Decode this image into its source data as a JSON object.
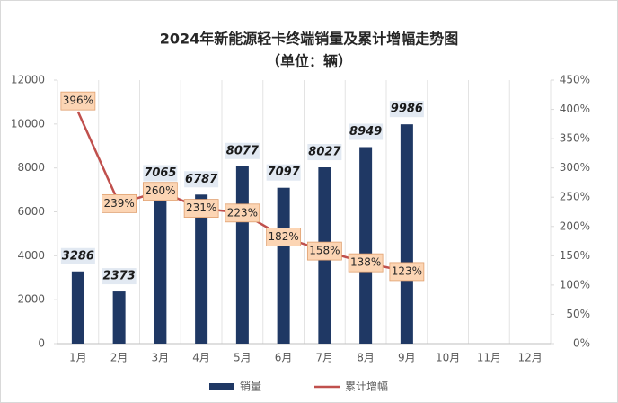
{
  "chart_data": {
    "type": "bar-line",
    "title": "2024年新能源轻卡终端销量及累计增幅走势图",
    "subtitle": "（单位：辆）",
    "categories": [
      "1月",
      "2月",
      "3月",
      "4月",
      "5月",
      "6月",
      "7月",
      "8月",
      "9月",
      "10月",
      "11月",
      "12月"
    ],
    "series": [
      {
        "name": "销量",
        "type": "bar",
        "color": "#1f3864",
        "axis": "y",
        "values": [
          3286,
          2373,
          7065,
          6787,
          8077,
          7097,
          8027,
          8949,
          9986,
          null,
          null,
          null
        ]
      },
      {
        "name": "累计增幅",
        "type": "line",
        "color": "#c0504d",
        "axis": "y2",
        "values": [
          396,
          239,
          260,
          231,
          223,
          182,
          158,
          138,
          123,
          null,
          null,
          null
        ],
        "value_labels": [
          "396%",
          "239%",
          "260%",
          "231%",
          "223%",
          "182%",
          "158%",
          "138%",
          "123%",
          null,
          null,
          null
        ]
      }
    ],
    "ylim": [
      0,
      12000
    ],
    "yticks": [
      0,
      2000,
      4000,
      6000,
      8000,
      10000,
      12000
    ],
    "y2lim": [
      0,
      450
    ],
    "y2ticks": [
      {
        "value": 0,
        "label": "0%"
      },
      {
        "value": 50,
        "label": "50%"
      },
      {
        "value": 100,
        "label": "100%"
      },
      {
        "value": 150,
        "label": "150%"
      },
      {
        "value": 200,
        "label": "200%"
      },
      {
        "value": 250,
        "label": "250%"
      },
      {
        "value": 300,
        "label": "300%"
      },
      {
        "value": 350,
        "label": "350%"
      },
      {
        "value": 400,
        "label": "400%"
      },
      {
        "value": 450,
        "label": "450%"
      }
    ],
    "legend": "bottom"
  }
}
